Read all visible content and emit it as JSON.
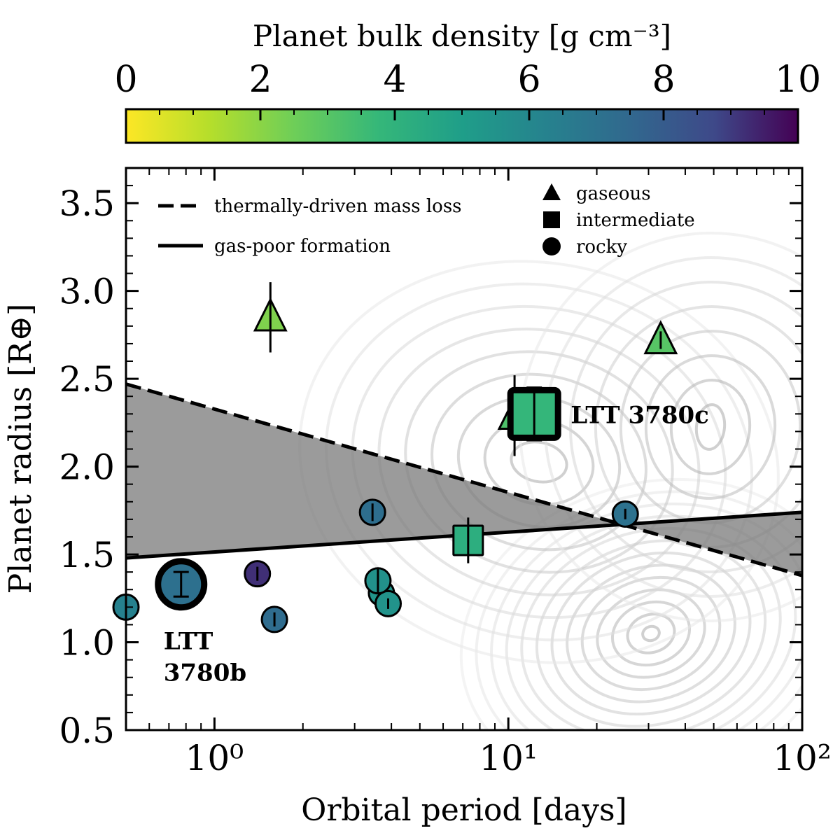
{
  "chart_data": {
    "type": "scatter",
    "xlabel": "Orbital period [days]",
    "ylabel": "Planet radius [R⊕]",
    "xscale": "log",
    "xlim": [
      0.5,
      100
    ],
    "ylim": [
      0.5,
      3.7
    ],
    "grid": false,
    "x_ticks": [
      {
        "value": 1,
        "label": "10⁰"
      },
      {
        "value": 10,
        "label": "10¹"
      },
      {
        "value": 100,
        "label": "10²"
      }
    ],
    "y_ticks": [
      {
        "value": 0.5,
        "label": "0.5"
      },
      {
        "value": 1.0,
        "label": "1.0"
      },
      {
        "value": 1.5,
        "label": "1.5"
      },
      {
        "value": 2.0,
        "label": "2.0"
      },
      {
        "value": 2.5,
        "label": "2.5"
      },
      {
        "value": 3.0,
        "label": "3.0"
      },
      {
        "value": 3.5,
        "label": "3.5"
      }
    ],
    "colorbar": {
      "label": "Planet bulk density [g cm⁻³]",
      "range": [
        0,
        10
      ],
      "ticks": [
        "0",
        "2",
        "4",
        "6",
        "8",
        "10"
      ],
      "colormap": "viridis_r",
      "position": "top"
    },
    "lines": [
      {
        "name": "thermally-driven mass loss",
        "style": "dashed",
        "x": [
          0.5,
          100
        ],
        "y": [
          2.47,
          1.38
        ]
      },
      {
        "name": "gas-poor formation",
        "style": "solid",
        "x": [
          0.5,
          100
        ],
        "y": [
          1.48,
          1.74
        ]
      }
    ],
    "legend": {
      "placement": "top-left",
      "lines": [
        "thermally-driven mass loss",
        "gas-poor formation"
      ],
      "markers": [
        {
          "shape": "triangle",
          "label": "gaseous"
        },
        {
          "shape": "square",
          "label": "intermediate"
        },
        {
          "shape": "circle",
          "label": "rocky"
        }
      ]
    },
    "points": [
      {
        "period": 1.55,
        "radius": 2.85,
        "rerr": 0.2,
        "density": 2.2,
        "shape": "triangle"
      },
      {
        "period": 33.0,
        "radius": 2.72,
        "rerr": 0.05,
        "density": 3.0,
        "shape": "triangle"
      },
      {
        "period": 10.5,
        "radius": 2.29,
        "rerr": 0.23,
        "density": 3.2,
        "shape": "triangle"
      },
      {
        "period": 12.25,
        "radius": 2.3,
        "rerr": 0.15,
        "density": 3.8,
        "shape": "square",
        "highlight": true,
        "label": "LTT 3780c"
      },
      {
        "period": 7.3,
        "radius": 1.58,
        "rerr": 0.13,
        "density": 4.2,
        "shape": "square"
      },
      {
        "period": 0.77,
        "radius": 1.33,
        "rerr": 0.07,
        "density": 7.1,
        "shape": "circle",
        "highlight": true,
        "label": "LTT 3780b"
      },
      {
        "period": 0.5,
        "radius": 1.2,
        "rerr": 0.03,
        "density": 6.3,
        "shape": "circle"
      },
      {
        "period": 1.4,
        "radius": 1.39,
        "rerr": 0.04,
        "density": 9.2,
        "shape": "circle"
      },
      {
        "period": 1.6,
        "radius": 1.13,
        "rerr": 0.04,
        "density": 7.3,
        "shape": "circle"
      },
      {
        "period": 3.45,
        "radius": 1.74,
        "rerr": 0.05,
        "density": 7.2,
        "shape": "circle"
      },
      {
        "period": 3.7,
        "radius": 1.28,
        "rerr": 0.03,
        "density": 5.4,
        "shape": "circle"
      },
      {
        "period": 3.9,
        "radius": 1.22,
        "rerr": 0.03,
        "density": 5.5,
        "shape": "circle"
      },
      {
        "period": 3.6,
        "radius": 1.35,
        "rerr": 0.07,
        "density": 5.6,
        "shape": "circle"
      },
      {
        "period": 25.0,
        "radius": 1.73,
        "rerr": 0.03,
        "density": 7.0,
        "shape": "circle"
      }
    ]
  }
}
